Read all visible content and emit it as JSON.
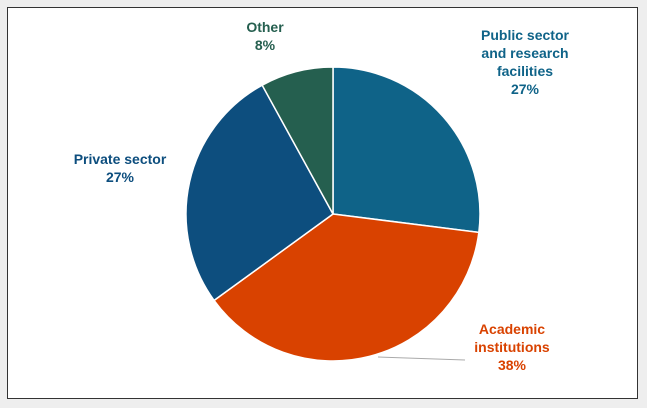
{
  "chart_data": {
    "type": "pie",
    "categories": [
      "Public sector and research facilities",
      "Academic institutions",
      "Private sector",
      "Other"
    ],
    "values": [
      27,
      38,
      27,
      8
    ],
    "value_labels": [
      "27%",
      "38%",
      "27%",
      "8%"
    ],
    "colors": [
      "#0f6388",
      "#d94200",
      "#0d4e7e",
      "#255f4f"
    ]
  }
}
